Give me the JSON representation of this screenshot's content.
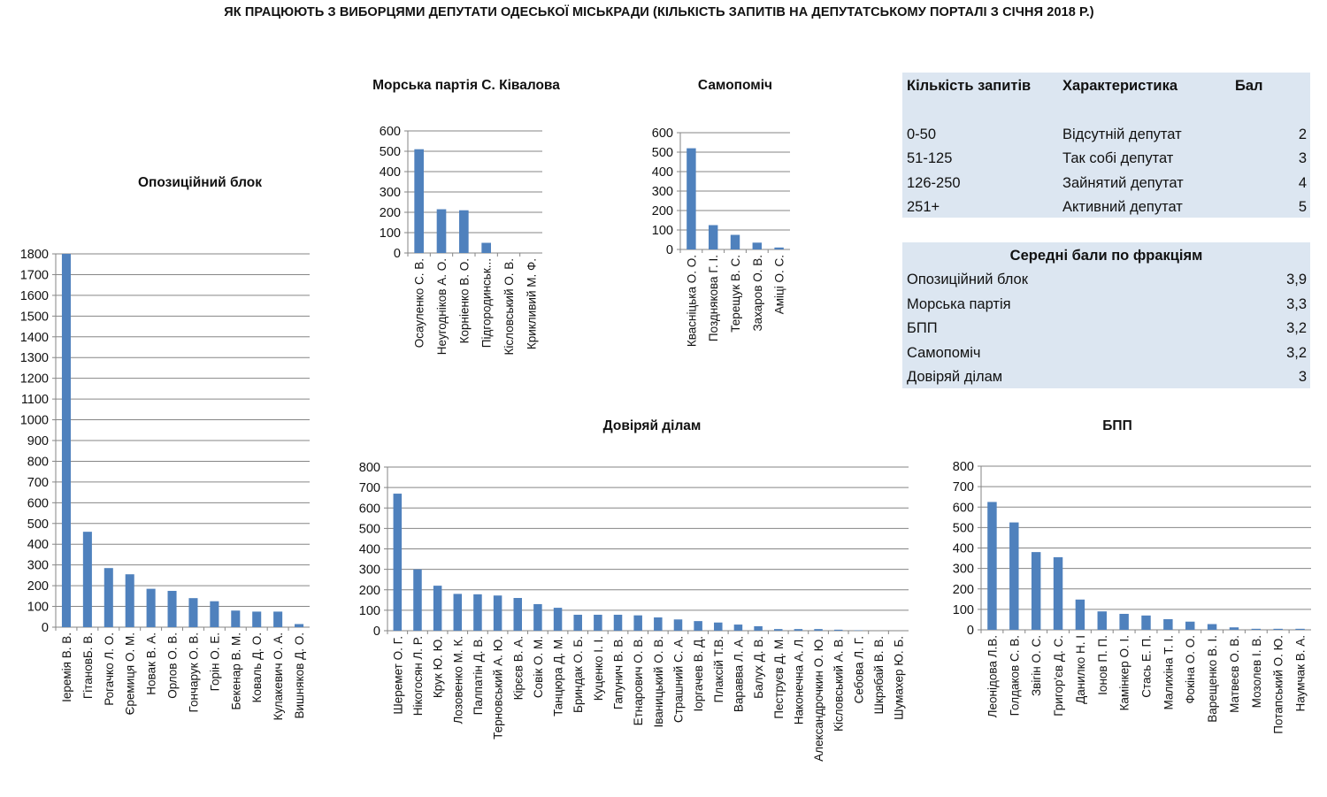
{
  "title": "ЯК ПРАЦЮЮТЬ З ВИБОРЦЯМИ ДЕПУТАТИ ОДЕСЬКОЇ МІСЬКРАДИ (КІЛЬКІСТЬ ЗАПИТІВ НА ДЕПУТАТСЬКОМУ ПОРТАЛІ З СІЧНЯ 2018 Р.)",
  "colors": {
    "bar": "#4f81bd",
    "grid": "#868686",
    "panel": "#dce6f1"
  },
  "scale_table": {
    "headers": [
      "Кількість запитів",
      "Характеристика",
      "Бал"
    ],
    "rows": [
      {
        "range": "0-50",
        "label": "Відсутній депутат",
        "score": "2"
      },
      {
        "range": "51-125",
        "label": "Так собі депутат",
        "score": "3"
      },
      {
        "range": "126-250",
        "label": "Зайнятий депутат",
        "score": "4"
      },
      {
        "range": "251+",
        "label": "Активний депутат",
        "score": "5"
      }
    ]
  },
  "avg_table": {
    "title": "Середні бали по фракціям",
    "rows": [
      {
        "faction": "Опозиційний блок",
        "score": "3,9"
      },
      {
        "faction": "Морська партія",
        "score": "3,3"
      },
      {
        "faction": "БПП",
        "score": "3,2"
      },
      {
        "faction": "Самопоміч",
        "score": "3,2"
      },
      {
        "faction": "Довіряй ділам",
        "score": "3"
      }
    ]
  },
  "chart_data": [
    {
      "type": "bar",
      "title": "Опозиційний блок",
      "categories": [
        "Іеремія В. В.",
        "ГітановБ. В.",
        "Рогачко Л. О.",
        "Єремиця О. М.",
        "Новак В. А.",
        "Орлов О. В.",
        "Гончарук О. В.",
        "Горін О. Е.",
        "Бекенар В. М.",
        "Коваль Д. О.",
        "Кулакевич О. А.",
        "Вишняков Д. О."
      ],
      "values": [
        1800,
        460,
        285,
        255,
        185,
        175,
        140,
        125,
        80,
        75,
        75,
        15
      ],
      "ylim": [
        0,
        1800
      ],
      "yticks": [
        0,
        100,
        200,
        300,
        400,
        500,
        600,
        700,
        800,
        900,
        1000,
        1100,
        1200,
        1300,
        1400,
        1500,
        1600,
        1700,
        1800
      ],
      "grid": true
    },
    {
      "type": "bar",
      "title": "Морська партія С. Ківалова",
      "categories": [
        "Осауленко С. В.",
        "Неугодніков А. О.",
        "Корніенко В. О.",
        "Підгородинськ...",
        "Кісловський О. В.",
        "Крикливий М. Ф."
      ],
      "values": [
        510,
        215,
        210,
        50,
        0,
        0
      ],
      "ylim": [
        0,
        600
      ],
      "yticks": [
        0,
        100,
        200,
        300,
        400,
        500,
        600
      ],
      "grid": true
    },
    {
      "type": "bar",
      "title": "Самопоміч",
      "categories": [
        "Квасніцька О. О.",
        "Позднякова Г. І.",
        "Терещук В. С.",
        "Захаров О. В.",
        "Аміці О. С."
      ],
      "values": [
        520,
        125,
        75,
        35,
        10
      ],
      "ylim": [
        0,
        600
      ],
      "yticks": [
        0,
        100,
        200,
        300,
        400,
        500,
        600
      ],
      "grid": true
    },
    {
      "type": "bar",
      "title": "Довіряй ділам",
      "categories": [
        "Шеремет О. Г.",
        "Нікогосян Л. Р.",
        "Крук Ю. Ю.",
        "Лозовенко М. К.",
        "Палпатін Д. В.",
        "Терновський А. Ю.",
        "Кірєєв В. А.",
        "Совік О. М.",
        "Танцюра Д. М.",
        "Бриндак О. Б.",
        "Куценко І. І.",
        "Гапунич В. В.",
        "Етнарович О. В.",
        "Іваницький О. В.",
        "Страшний С. А.",
        "Іоргачев В. Д.",
        "Плаксій Т.В.",
        "Варавва Л. А.",
        "Балух Д. В.",
        "Пеструєв Д. М.",
        "Наконечна А. Л.",
        "Александрочкин О. Ю.",
        "Кісловський А. В.",
        "Себова Л. Г.",
        "Шкрябай В. В.",
        "Шумахер Ю. Б."
      ],
      "values": [
        670,
        300,
        220,
        180,
        178,
        172,
        160,
        130,
        112,
        78,
        78,
        78,
        75,
        65,
        55,
        47,
        40,
        30,
        22,
        8,
        8,
        8,
        5,
        2,
        0,
        0
      ],
      "ylim": [
        0,
        800
      ],
      "yticks": [
        0,
        100,
        200,
        300,
        400,
        500,
        600,
        700,
        800
      ],
      "grid": true
    },
    {
      "type": "bar",
      "title": "БПП",
      "categories": [
        "Леонідова Л.В.",
        "Голдаков С. В.",
        "Звігін О. С.",
        "Григор'єв Д. С.",
        "Данилко Н. І",
        "Іонов П. П.",
        "Камінкер О. І.",
        "Стась Е. П.",
        "Малихіна Т. І.",
        "Фокіна О. О.",
        "Варещенко В. І.",
        "Матвеєв О. В.",
        "Мозолев І. В.",
        "Потапський О. Ю.",
        "Наумчак В. А."
      ],
      "values": [
        625,
        525,
        380,
        355,
        148,
        90,
        78,
        70,
        52,
        40,
        28,
        12,
        5,
        5,
        5
      ],
      "ylim": [
        0,
        800
      ],
      "yticks": [
        0,
        100,
        200,
        300,
        400,
        500,
        600,
        700,
        800
      ],
      "grid": true
    }
  ]
}
